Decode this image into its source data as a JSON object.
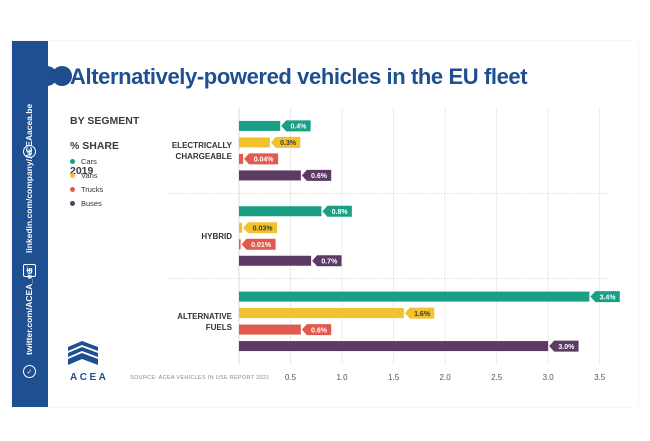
{
  "sidebar": {
    "website": "acea.be",
    "linkedin": "linkedin.com/company/ACEA",
    "twitter": "twitter.com/ACEA_eu",
    "linkedin_icon": "linkedin-icon",
    "twitter_icon": "twitter-icon",
    "web_icon": "globe-icon"
  },
  "logo": {
    "text": "ACEA"
  },
  "chart_data": {
    "type": "bar",
    "orientation": "horizontal",
    "title": "Alternatively-powered vehicles in the EU fleet",
    "subtitle_lines": [
      "BY SEGMENT",
      "% SHARE",
      "2019"
    ],
    "source": "SOURCE: ACEA VEHICLES IN USE REPORT 2021",
    "categories": [
      "ELECTRICALLY CHARGEABLE",
      "HYBRID",
      "ALTERNATIVE FUELS"
    ],
    "category_lines": [
      [
        "ELECTRICALLY",
        "CHARGEABLE"
      ],
      [
        "HYBRID"
      ],
      [
        "ALTERNATIVE",
        "FUELS"
      ]
    ],
    "series": [
      {
        "name": "Cars",
        "color": "#1a9e84",
        "values": [
          0.4,
          0.8,
          3.4
        ],
        "labels": [
          "0.4%",
          "0.8%",
          "3.4%"
        ]
      },
      {
        "name": "Vans",
        "color": "#f2c12e",
        "values": [
          0.3,
          0.03,
          1.6
        ],
        "labels": [
          "0.3%",
          "0.03%",
          "1.6%"
        ]
      },
      {
        "name": "Trucks",
        "color": "#e15a4f",
        "values": [
          0.04,
          0.01,
          0.6
        ],
        "labels": [
          "0.04%",
          "0.01%",
          "0.6%"
        ]
      },
      {
        "name": "Buses",
        "color": "#5b3a63",
        "values": [
          0.6,
          0.7,
          3.0
        ],
        "labels": [
          "0.6%",
          "0.7%",
          "3.0%"
        ]
      }
    ],
    "xlim": [
      0,
      3.6
    ],
    "xticks": [
      0.5,
      1.0,
      1.5,
      2.0,
      2.5,
      3.0,
      3.5
    ],
    "xtick_labels": [
      "0.5",
      "1.0",
      "1.5",
      "2.0",
      "2.5",
      "3.0",
      "3.5"
    ],
    "grid": true,
    "legend_position": "left"
  }
}
